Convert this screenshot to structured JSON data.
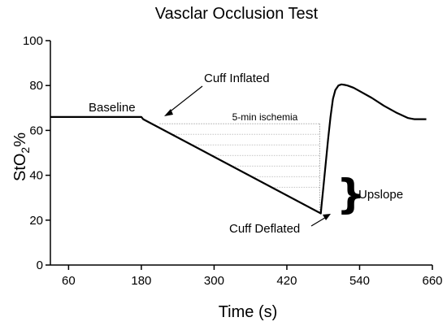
{
  "chart_data": {
    "type": "line",
    "title": "Vasclar Occlusion Test",
    "xlabel": "Time (s)",
    "ylabel_main": "StO",
    "ylabel_sub": "2",
    "ylabel_suffix": "%",
    "xlim": [
      30,
      660
    ],
    "ylim": [
      0,
      100
    ],
    "xticks": [
      60,
      180,
      300,
      420,
      540,
      660
    ],
    "yticks": [
      0,
      20,
      40,
      60,
      80,
      100
    ],
    "grid": false,
    "series": [
      {
        "x": [
          30,
          180,
          183,
          476,
          477,
          480,
          484,
          488,
          492,
          496,
          500,
          505,
          510,
          515,
          520,
          530,
          540,
          560,
          580,
          600,
          620,
          630,
          640,
          650
        ],
        "y": [
          66,
          66,
          65,
          23,
          26,
          34,
          45,
          56,
          66,
          74,
          78,
          80,
          80.5,
          80.3,
          80,
          79,
          77.5,
          74.5,
          71,
          68,
          65.5,
          65,
          65,
          65
        ]
      }
    ],
    "annotations": {
      "baseline": "Baseline",
      "cuff_inflated": "Cuff Inflated",
      "ischemia": "5-min ischemia",
      "cuff_deflated": "Cuff Deflated",
      "upslope": "Upslope"
    },
    "ischemia_region": {
      "x_start": 210,
      "x_end": 474,
      "y_top": 63,
      "hatch_lines": 7
    }
  }
}
